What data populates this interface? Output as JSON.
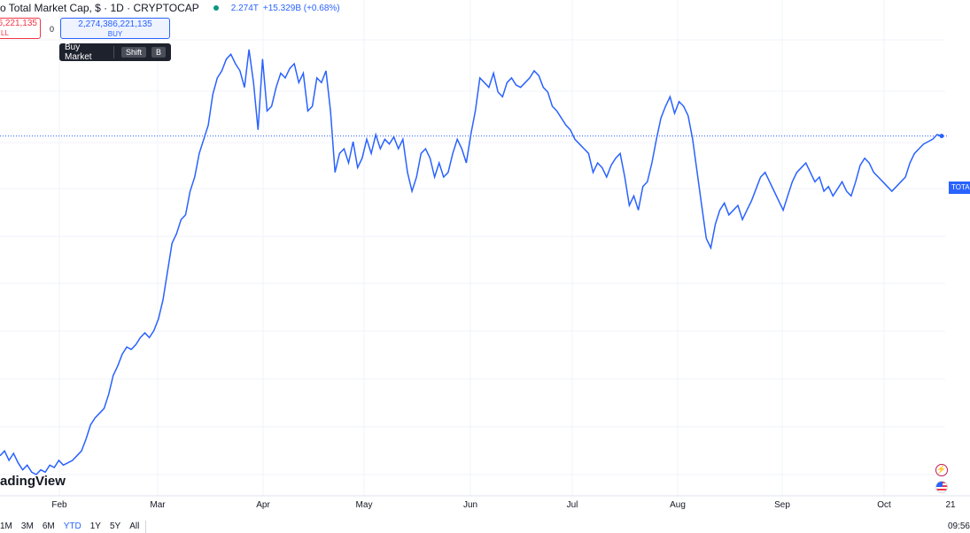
{
  "header": {
    "title": "o Total Market Cap, $ · 1D · CRYPTOCAP",
    "value": "2.274T",
    "change": "+15.329B (+0.68%)"
  },
  "order": {
    "sell_price": "6,221,135",
    "sell_label": "LL",
    "spread": "0",
    "buy_price": "2,274,386,221,135",
    "buy_label": "BUY"
  },
  "tooltip": {
    "label": "Buy Market",
    "key1": "Shift",
    "key2": "B"
  },
  "watermark": "adingView",
  "price_tag": "TOTA",
  "ranges": [
    "1M",
    "3M",
    "6M",
    "YTD",
    "1Y",
    "5Y",
    "All"
  ],
  "active_range": "YTD",
  "time_label": "09:56",
  "colors": {
    "line": "#2962ff",
    "grid": "#f0f3fa",
    "price_line": "#2962ff"
  },
  "chart_data": {
    "type": "line",
    "title": "o Total Market Cap, $ · 1D · CRYPTOCAP",
    "xlabel": "",
    "ylabel": "",
    "x_ticks": [
      "Feb",
      "Mar",
      "Apr",
      "May",
      "Jun",
      "Jul",
      "Aug",
      "Sep",
      "Oct",
      "21"
    ],
    "last_value": "2.274T",
    "grid": true,
    "series": [
      {
        "values": [
          0.92,
          0.94,
          0.9,
          0.93,
          0.89,
          0.86,
          0.88,
          0.85,
          0.84,
          0.86,
          0.85,
          0.88,
          0.87,
          0.9,
          0.88,
          0.89,
          0.9,
          0.92,
          0.94,
          0.99,
          1.05,
          1.08,
          1.1,
          1.12,
          1.18,
          1.26,
          1.3,
          1.35,
          1.38,
          1.37,
          1.39,
          1.42,
          1.44,
          1.42,
          1.45,
          1.5,
          1.58,
          1.7,
          1.82,
          1.86,
          1.92,
          1.94,
          2.04,
          2.1,
          2.2,
          2.26,
          2.32,
          2.45,
          2.52,
          2.55,
          2.6,
          2.62,
          2.58,
          2.55,
          2.48,
          2.64,
          2.5,
          2.3,
          2.6,
          2.38,
          2.4,
          2.48,
          2.54,
          2.52,
          2.56,
          2.58,
          2.5,
          2.54,
          2.38,
          2.4,
          2.52,
          2.5,
          2.55,
          2.38,
          2.12,
          2.2,
          2.22,
          2.16,
          2.25,
          2.14,
          2.18,
          2.26,
          2.2,
          2.28,
          2.22,
          2.26,
          2.24,
          2.27,
          2.22,
          2.26,
          2.12,
          2.04,
          2.1,
          2.2,
          2.22,
          2.18,
          2.1,
          2.16,
          2.1,
          2.12,
          2.2,
          2.26,
          2.22,
          2.16,
          2.28,
          2.38,
          2.52,
          2.5,
          2.48,
          2.54,
          2.46,
          2.44,
          2.5,
          2.52,
          2.49,
          2.48,
          2.5,
          2.52,
          2.55,
          2.53,
          2.48,
          2.46,
          2.4,
          2.38,
          2.35,
          2.32,
          2.3,
          2.26,
          2.24,
          2.22,
          2.2,
          2.12,
          2.16,
          2.14,
          2.1,
          2.15,
          2.18,
          2.2,
          2.1,
          1.98,
          2.02,
          1.96,
          2.06,
          2.08,
          2.16,
          2.26,
          2.35,
          2.4,
          2.44,
          2.37,
          2.42,
          2.4,
          2.36,
          2.26,
          2.12,
          1.98,
          1.84,
          1.8,
          1.9,
          1.96,
          1.99,
          1.94,
          1.96,
          1.98,
          1.92,
          1.96,
          2.0,
          2.05,
          2.1,
          2.12,
          2.08,
          2.04,
          2.0,
          1.96,
          2.02,
          2.08,
          2.12,
          2.14,
          2.16,
          2.12,
          2.08,
          2.1,
          2.04,
          2.06,
          2.02,
          2.05,
          2.08,
          2.04,
          2.02,
          2.08,
          2.15,
          2.18,
          2.16,
          2.12,
          2.1,
          2.08,
          2.06,
          2.04,
          2.06,
          2.08,
          2.1,
          2.16,
          2.2,
          2.22,
          2.24,
          2.25,
          2.26,
          2.28,
          2.274
        ]
      }
    ]
  }
}
